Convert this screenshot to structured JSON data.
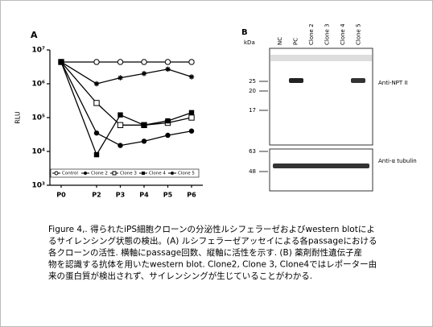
{
  "chart_data": {
    "type": "line",
    "panel_label": "A",
    "y_label": "RLU",
    "categories": [
      "P0",
      "P2",
      "P3",
      "P4",
      "P5",
      "P6"
    ],
    "series": [
      {
        "name": "Control",
        "color": "#000000",
        "values": [
          4400000,
          4400000,
          4400000,
          4400000,
          4400000,
          4400000
        ]
      },
      {
        "name": "Clone 2",
        "color": "#000000",
        "values": [
          4400000,
          35000,
          15000,
          20000,
          30000,
          40000
        ]
      },
      {
        "name": "Clone 3",
        "color": "#000000",
        "values": [
          4400000,
          270000,
          60000,
          60000,
          70000,
          100000
        ]
      },
      {
        "name": "Clone 4",
        "color": "#000000",
        "values": [
          4400000,
          8000,
          120000,
          60000,
          80000,
          140000
        ]
      },
      {
        "name": "Clone 5",
        "color": "#000000",
        "values": [
          4400000,
          1000000,
          1500000,
          2000000,
          2700000,
          1600000
        ]
      }
    ],
    "log_y": true,
    "ylim": [
      1000,
      10000000
    ],
    "yticks": [
      {
        "value": 1000,
        "label": "10³"
      },
      {
        "value": 10000,
        "label": "10⁴"
      },
      {
        "value": 100000,
        "label": "10⁵"
      },
      {
        "value": 1000000,
        "label": "10⁶"
      },
      {
        "value": 10000000,
        "label": "10⁷"
      }
    ],
    "legend": "bottom"
  },
  "blot": {
    "panel_label": "B",
    "unit": "kDa",
    "lanes": [
      "NC",
      "PC",
      "Clone 2",
      "Clone 3",
      "Clone 4",
      "Clone 5"
    ],
    "markers_top": [
      "25",
      "20",
      "17"
    ],
    "markers_bottom": [
      "63",
      "48"
    ],
    "antibody_top": "Anti-NPT II",
    "antibody_bottom": "Anti-α tubulin"
  },
  "caption": {
    "lines": [
      "Figure 4,. 得られたiPS細胞クローンの分泌性ルシフェラーゼおよびwestern blotによ",
      "るサイレンシング状態の検出。(A) ルシフェラーゼアッセイによる各passageにおける",
      "各クローンの活性. 横軸にpassage回数、縦軸に活性を示す. (B) 薬剤耐性遺伝子産",
      "物を認識する抗体を用いたwestern blot. Clone2, Clone 3, Clone4ではレポーター由",
      "来の蛋白質が検出されず、サイレンシングが生じていることがわかる."
    ]
  }
}
